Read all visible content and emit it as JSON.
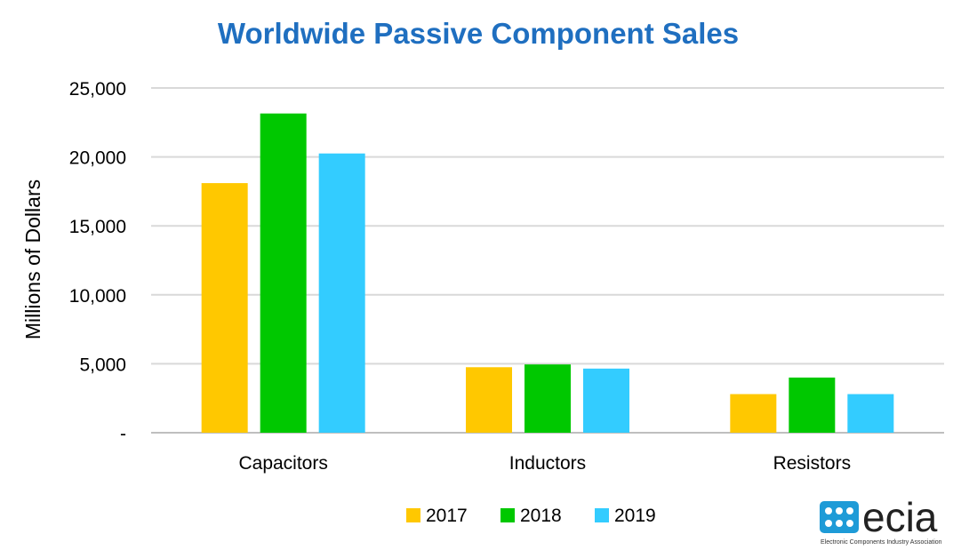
{
  "chart_data": {
    "type": "bar",
    "title": "Worldwide Passive Component Sales",
    "ylabel": "Millions of Dollars",
    "xlabel": "",
    "categories": [
      "Capacitors",
      "Inductors",
      "Resistors"
    ],
    "series": [
      {
        "name": "2017",
        "values": [
          18100,
          4750,
          2800
        ],
        "color": "#FFC800"
      },
      {
        "name": "2018",
        "values": [
          23150,
          4950,
          4000
        ],
        "color": "#00C800"
      },
      {
        "name": "2019",
        "values": [
          20250,
          4650,
          2800
        ],
        "color": "#33CCFF"
      }
    ],
    "ylim": [
      0,
      25000
    ],
    "yticks": [
      "-",
      "5,000",
      "10,000",
      "15,000",
      "20,000",
      "25,000"
    ],
    "grid": true,
    "legend_position": "bottom",
    "title_color": "#1F6FC0"
  },
  "logo": {
    "word": "ecia",
    "tagline": "Electronic Components Industry Association",
    "icon": "ecia-logo-icon",
    "icon_color": "#1E9BD7"
  }
}
